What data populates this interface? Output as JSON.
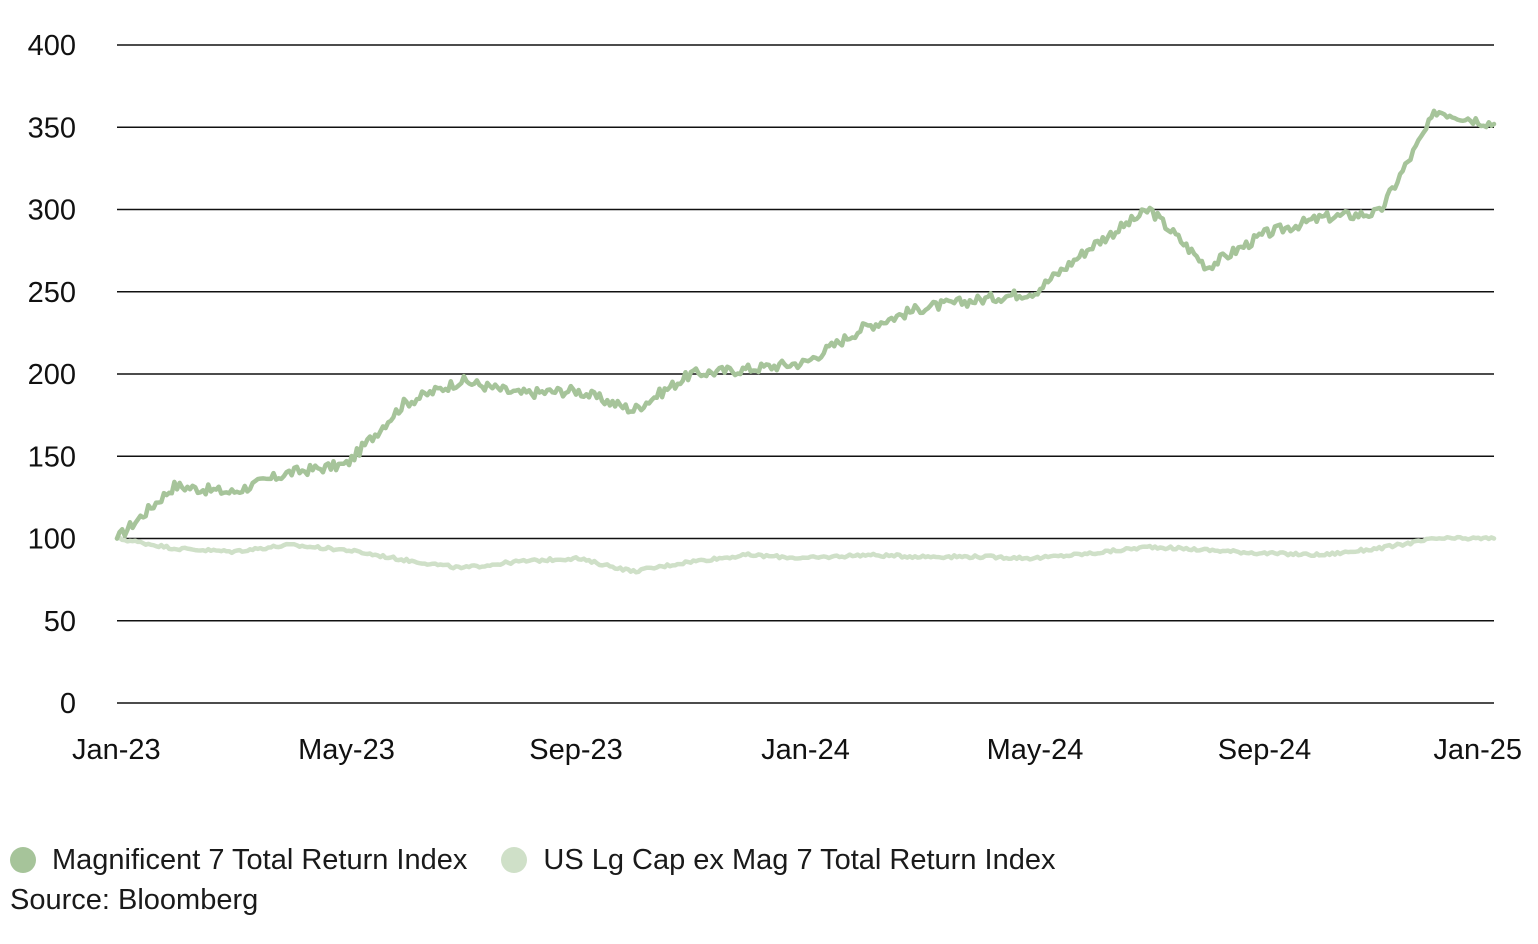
{
  "source_note": "Source: Bloomberg",
  "legend": [
    {
      "label": "Magnificent 7 Total Return Index",
      "color": "#a6c49a"
    },
    {
      "label": "US Lg Cap ex Mag 7 Total Return Index",
      "color": "#cfe0c8"
    }
  ],
  "chart_data": {
    "type": "line",
    "title": "",
    "xlabel": "",
    "ylabel": "",
    "ylim": [
      0,
      400
    ],
    "yticks": [
      "0",
      "50",
      "100",
      "150",
      "200",
      "250",
      "300",
      "350",
      "400"
    ],
    "xrange": [
      "2023-01",
      "2025-01"
    ],
    "xticks": [
      "Jan-23",
      "May-23",
      "Sep-23",
      "Jan-24",
      "May-24",
      "Sep-24",
      "Jan-25"
    ],
    "grid": "horizontal",
    "legend_position": "bottom-left",
    "x": [
      "2023-01",
      "2023-02",
      "2023-03",
      "2023-04",
      "2023-05",
      "2023-06",
      "2023-07",
      "2023-08",
      "2023-09",
      "2023-10",
      "2023-11",
      "2023-12",
      "2024-01",
      "2024-02",
      "2024-03",
      "2024-04",
      "2024-05",
      "2024-06",
      "2024-07",
      "2024-08",
      "2024-09",
      "2024-10",
      "2024-11",
      "2024-12",
      "2025-01"
    ],
    "series": [
      {
        "name": "Magnificent 7 Total Return Index",
        "color": "#a6c49a",
        "values": [
          100,
          132,
          128,
          140,
          145,
          182,
          196,
          188,
          190,
          178,
          200,
          203,
          207,
          228,
          240,
          245,
          250,
          278,
          300,
          265,
          285,
          295,
          298,
          360,
          352
        ]
      },
      {
        "name": "US Lg Cap ex Mag 7 Total Return Index",
        "color": "#cfe0c8",
        "values": [
          100,
          94,
          92,
          96,
          93,
          87,
          82,
          86,
          88,
          80,
          86,
          90,
          88,
          90,
          89,
          89,
          88,
          91,
          95,
          93,
          91,
          90,
          94,
          100,
          100
        ]
      }
    ]
  }
}
